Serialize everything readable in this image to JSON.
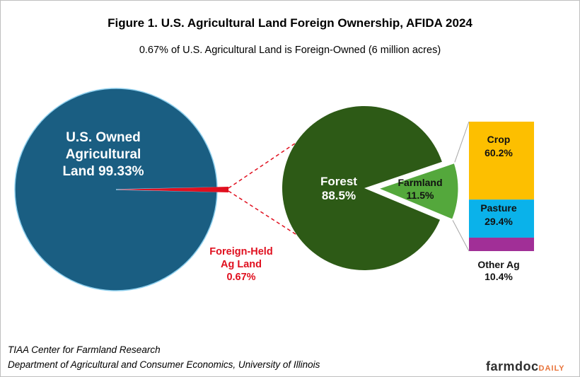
{
  "title": "Figure 1. U.S. Agricultural Land Foreign Ownership, AFIDA 2024",
  "subtitle": "0.67% of U.S. Agricultural  Land is Foreign-Owned (6 million acres)",
  "credits": {
    "line1": "TIAA Center for Farmland Research",
    "line2": "Department of Agricultural and Consumer Economics, University of Illinois"
  },
  "logo": {
    "main": "farmdoc",
    "suffix": "DAILY"
  },
  "colors": {
    "us_owned": "#1a5e82",
    "us_owned_edge": "#8fd0ee",
    "foreign": "#e0101f",
    "forest": "#2d5a16",
    "farmland": "#54a83c",
    "crop": "#fdbf00",
    "pasture": "#0ab2ea",
    "other_ag": "#a12f97",
    "leader": "#e0101f",
    "connector": "#a6a6a6"
  },
  "chart_data": [
    {
      "type": "pie",
      "slices": [
        {
          "label": "U.S. Owned Agricultural Land 99.33%",
          "lines": [
            "U.S. Owned",
            "Agricultural",
            "Land 99.33%"
          ],
          "value": 99.33
        },
        {
          "label": "Foreign-Held Ag Land 0.67%",
          "lines": [
            "Foreign-Held",
            "Ag Land",
            "0.67%"
          ],
          "value": 0.67
        }
      ]
    },
    {
      "type": "pie",
      "slices": [
        {
          "label": "Forest 88.5%",
          "lines": [
            "Forest",
            "88.5%"
          ],
          "value": 88.5
        },
        {
          "label": "Farmland 11.5%",
          "lines": [
            "Farmland",
            "11.5%"
          ],
          "value": 11.5
        }
      ]
    },
    {
      "type": "bar",
      "stacked": true,
      "segments": [
        {
          "label": "Crop 60.2%",
          "lines": [
            "Crop",
            "60.2%"
          ],
          "value": 60.2
        },
        {
          "label": "Pasture 29.4%",
          "lines": [
            "Pasture",
            "29.4%"
          ],
          "value": 29.4
        },
        {
          "label": "Other Ag 10.4%",
          "lines": [
            "Other Ag",
            "10.4%"
          ],
          "value": 10.4
        }
      ]
    }
  ]
}
